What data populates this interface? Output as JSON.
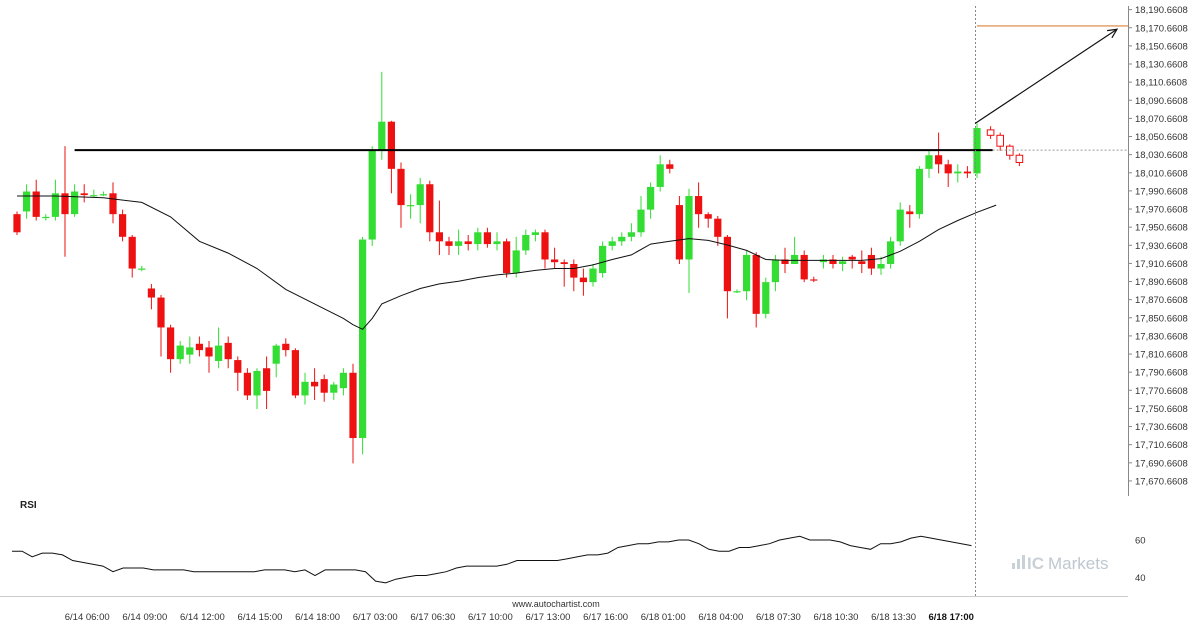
{
  "chart_data": {
    "type": "candlestick",
    "colors": {
      "up": "#33dd33",
      "down": "#ee1111",
      "ma": "#111111",
      "resistance": "#000000",
      "target": "#d9823b",
      "rsi": "#111111"
    },
    "y_range": [
      17660.6608,
      18194.6608
    ],
    "y_ticks": [
      "18,190.6608",
      "18,170.6608",
      "18,150.6608",
      "18,130.6608",
      "18,110.6608",
      "18,090.6608",
      "18,070.6608",
      "18,050.6608",
      "18,030.6608",
      "18,010.6608",
      "17,990.6608",
      "17,970.6608",
      "17,950.6608",
      "17,930.6608",
      "17,910.6608",
      "17,890.6608",
      "17,870.6608",
      "17,850.6608",
      "17,830.6608",
      "17,810.6608",
      "17,790.6608",
      "17,770.6608",
      "17,750.6608",
      "17,730.6608",
      "17,710.6608",
      "17,690.6608",
      "17,670.6608"
    ],
    "x_tick_labels": [
      "6/14 06:00",
      "6/14 09:00",
      "6/14 12:00",
      "6/14 15:00",
      "6/14 18:00",
      "6/17 03:00",
      "6/17 06:30",
      "6/17 10:00",
      "6/17 13:00",
      "6/17 16:00",
      "6/18 01:00",
      "6/18 04:00",
      "6/18 07:30",
      "6/18 10:30",
      "6/18 13:30",
      "6/18 17:00"
    ],
    "x_tick_index": [
      7,
      13,
      19,
      25,
      31,
      37,
      43,
      49,
      55,
      61,
      67,
      73,
      79,
      85,
      91,
      97
    ],
    "highlight_tick": "6/18 17:00",
    "candles": [
      [
        17965,
        17945,
        17968,
        17942
      ],
      [
        17968,
        17990,
        17998,
        17960
      ],
      [
        17990,
        17962,
        18003,
        17958
      ],
      [
        17962,
        17962,
        17965,
        17958
      ],
      [
        17962,
        17988,
        18003,
        17958
      ],
      [
        17988,
        17965,
        18040,
        17918
      ],
      [
        17965,
        17990,
        17998,
        17962
      ],
      [
        17988,
        17986,
        17998,
        17978
      ],
      [
        17986,
        17986,
        17992,
        17984
      ],
      [
        17986,
        17987,
        17990,
        17985
      ],
      [
        17988,
        17965,
        18000,
        17955
      ],
      [
        17965,
        17940,
        17970,
        17935
      ],
      [
        17940,
        17905,
        17942,
        17895
      ],
      [
        17905,
        17905,
        17908,
        17902
      ],
      [
        17883,
        17873,
        17888,
        17860
      ],
      [
        17873,
        17840,
        17876,
        17808
      ],
      [
        17840,
        17805,
        17843,
        17790
      ],
      [
        17805,
        17820,
        17825,
        17800
      ],
      [
        17810,
        17818,
        17830,
        17800
      ],
      [
        17822,
        17815,
        17830,
        17808
      ],
      [
        17818,
        17808,
        17825,
        17790
      ],
      [
        17803,
        17820,
        17840,
        17795
      ],
      [
        17823,
        17805,
        17830,
        17795
      ],
      [
        17804,
        17790,
        17808,
        17770
      ],
      [
        17790,
        17765,
        17795,
        17760
      ],
      [
        17765,
        17792,
        17795,
        17750
      ],
      [
        17795,
        17770,
        17808,
        17750
      ],
      [
        17800,
        17820,
        17822,
        17785
      ],
      [
        17822,
        17815,
        17828,
        17808
      ],
      [
        17815,
        17765,
        17817,
        17762
      ],
      [
        17765,
        17780,
        17790,
        17755
      ],
      [
        17780,
        17775,
        17795,
        17760
      ],
      [
        17783,
        17768,
        17788,
        17758
      ],
      [
        17768,
        17777,
        17780,
        17760
      ],
      [
        17773,
        17790,
        17795,
        17765
      ],
      [
        17790,
        17718,
        17800,
        17690
      ],
      [
        17718,
        17937,
        17940,
        17700
      ],
      [
        17937,
        18035,
        18040,
        17930
      ],
      [
        18035,
        18067,
        18122,
        18025
      ],
      [
        18067,
        18015,
        18068,
        17988
      ],
      [
        18015,
        17975,
        18022,
        17950
      ],
      [
        17975,
        17975,
        17987,
        17960
      ],
      [
        17975,
        17998,
        18005,
        17955
      ],
      [
        17998,
        17945,
        18002,
        17935
      ],
      [
        17945,
        17935,
        17980,
        17920
      ],
      [
        17935,
        17930,
        17940,
        17920
      ],
      [
        17930,
        17935,
        17948,
        17920
      ],
      [
        17935,
        17932,
        17942,
        17925
      ],
      [
        17932,
        17945,
        17950,
        17925
      ],
      [
        17945,
        17932,
        17950,
        17928
      ],
      [
        17932,
        17935,
        17945,
        17925
      ],
      [
        17935,
        17900,
        17938,
        17895
      ],
      [
        17900,
        17925,
        17940,
        17895
      ],
      [
        17925,
        17942,
        17948,
        17920
      ],
      [
        17942,
        17945,
        17948,
        17935
      ],
      [
        17945,
        17915,
        17948,
        17905
      ],
      [
        17915,
        17912,
        17928,
        17905
      ],
      [
        17912,
        17910,
        17915,
        17885
      ],
      [
        17910,
        17895,
        17915,
        17880
      ],
      [
        17895,
        17890,
        17905,
        17875
      ],
      [
        17890,
        17905,
        17910,
        17885
      ],
      [
        17900,
        17930,
        17935,
        17895
      ],
      [
        17930,
        17935,
        17940,
        17925
      ],
      [
        17935,
        17940,
        17945,
        17930
      ],
      [
        17940,
        17945,
        17955,
        17935
      ],
      [
        17945,
        17970,
        17985,
        17940
      ],
      [
        17970,
        17995,
        18000,
        17960
      ],
      [
        17995,
        18020,
        18030,
        17990
      ],
      [
        18020,
        18015,
        18025,
        18010
      ],
      [
        17975,
        17915,
        17985,
        17910
      ],
      [
        17915,
        17985,
        17993,
        17878
      ],
      [
        17985,
        17965,
        18000,
        17950
      ],
      [
        17965,
        17960,
        17967,
        17950
      ],
      [
        17960,
        17940,
        17963,
        17930
      ],
      [
        17940,
        17880,
        17942,
        17850
      ],
      [
        17880,
        17880,
        17882,
        17878
      ],
      [
        17880,
        17920,
        17925,
        17870
      ],
      [
        17920,
        17855,
        17923,
        17840
      ],
      [
        17855,
        17890,
        17895,
        17850
      ],
      [
        17890,
        17915,
        17920,
        17880
      ],
      [
        17915,
        17910,
        17928,
        17900
      ],
      [
        17910,
        17920,
        17940,
        17910
      ],
      [
        17920,
        17893,
        17925,
        17890
      ],
      [
        17893,
        17892,
        17896,
        17890
      ],
      [
        17912,
        17915,
        17920,
        17905
      ],
      [
        17915,
        17910,
        17920,
        17905
      ],
      [
        17910,
        17913,
        17918,
        17902
      ],
      [
        17918,
        17915,
        17920,
        17905
      ],
      [
        17913,
        17910,
        17925,
        17900
      ],
      [
        17920,
        17905,
        17928,
        17898
      ],
      [
        17905,
        17910,
        17918,
        17898
      ],
      [
        17910,
        17935,
        17940,
        17905
      ],
      [
        17935,
        17970,
        17978,
        17930
      ],
      [
        17968,
        17965,
        17975,
        17950
      ],
      [
        17965,
        18015,
        18018,
        17960
      ],
      [
        18015,
        18030,
        18035,
        18005
      ],
      [
        18030,
        18020,
        18055,
        18010
      ],
      [
        18020,
        18010,
        18025,
        17995
      ],
      [
        18010,
        18012,
        18020,
        18000
      ],
      [
        18012,
        18010,
        18018,
        18005
      ],
      [
        18010,
        18060,
        18065,
        18005
      ]
    ],
    "forecast_candles": [
      [
        18058,
        18052,
        18062,
        18048
      ],
      [
        18052,
        18040,
        18055,
        18035
      ],
      [
        18040,
        18030,
        18042,
        18025
      ],
      [
        18030,
        18022,
        18032,
        18018
      ]
    ],
    "moving_average": [
      [
        0,
        17985
      ],
      [
        4,
        17985
      ],
      [
        9,
        17983
      ],
      [
        13,
        17978
      ],
      [
        16,
        17962
      ],
      [
        19,
        17935
      ],
      [
        22,
        17922
      ],
      [
        25,
        17905
      ],
      [
        28,
        17882
      ],
      [
        31,
        17866
      ],
      [
        34,
        17850
      ],
      [
        35,
        17843
      ],
      [
        36,
        17838
      ],
      [
        37,
        17850
      ],
      [
        38,
        17866
      ],
      [
        40,
        17875
      ],
      [
        42,
        17883
      ],
      [
        44,
        17888
      ],
      [
        46,
        17891
      ],
      [
        48,
        17895
      ],
      [
        50,
        17898
      ],
      [
        52,
        17900
      ],
      [
        54,
        17903
      ],
      [
        56,
        17905
      ],
      [
        58,
        17905
      ],
      [
        60,
        17909
      ],
      [
        62,
        17915
      ],
      [
        64,
        17920
      ],
      [
        66,
        17932
      ],
      [
        68,
        17935
      ],
      [
        70,
        17938
      ],
      [
        72,
        17936
      ],
      [
        74,
        17931
      ],
      [
        76,
        17925
      ],
      [
        78,
        17915
      ],
      [
        80,
        17914
      ],
      [
        82,
        17914
      ],
      [
        84,
        17914
      ],
      [
        86,
        17914
      ],
      [
        88,
        17914
      ],
      [
        90,
        17916
      ],
      [
        92,
        17924
      ],
      [
        94,
        17935
      ],
      [
        96,
        17948
      ],
      [
        98,
        17958
      ],
      [
        100,
        17967
      ],
      [
        102,
        17975
      ]
    ],
    "resistance": {
      "value": 18035.66,
      "from_index": 6,
      "to_index": 101
    },
    "target_level": {
      "value": 18172.66
    },
    "forecast_arrow": {
      "from": [
        101,
        18065
      ],
      "to": [
        114,
        18169
      ]
    },
    "rsi": {
      "label": "RSI",
      "ticks": [
        60,
        40
      ],
      "range": [
        30,
        75
      ],
      "values": [
        54,
        54,
        51,
        53,
        53,
        52,
        49,
        48,
        47,
        46,
        43,
        45,
        45,
        45,
        44,
        44,
        44,
        44,
        43,
        43,
        43,
        43,
        43,
        43,
        43,
        44,
        44,
        44,
        43,
        44,
        41,
        44,
        44,
        44,
        44,
        43,
        38,
        37,
        39,
        40,
        41,
        41,
        42,
        43,
        45,
        46,
        46,
        46,
        46,
        47,
        49,
        49,
        49,
        49,
        49,
        50,
        51,
        52,
        52,
        53,
        56,
        57,
        58,
        58,
        59,
        59,
        60,
        60,
        58,
        55,
        54,
        54,
        56,
        56,
        57,
        58,
        60,
        61,
        62,
        60,
        60,
        60,
        59,
        57,
        56,
        55,
        58,
        58,
        59,
        61,
        62,
        61,
        60,
        59,
        58,
        57
      ]
    }
  },
  "watermark": "www.autochartist.com",
  "logo": {
    "prefix": "IC",
    "suffix": "Markets"
  }
}
